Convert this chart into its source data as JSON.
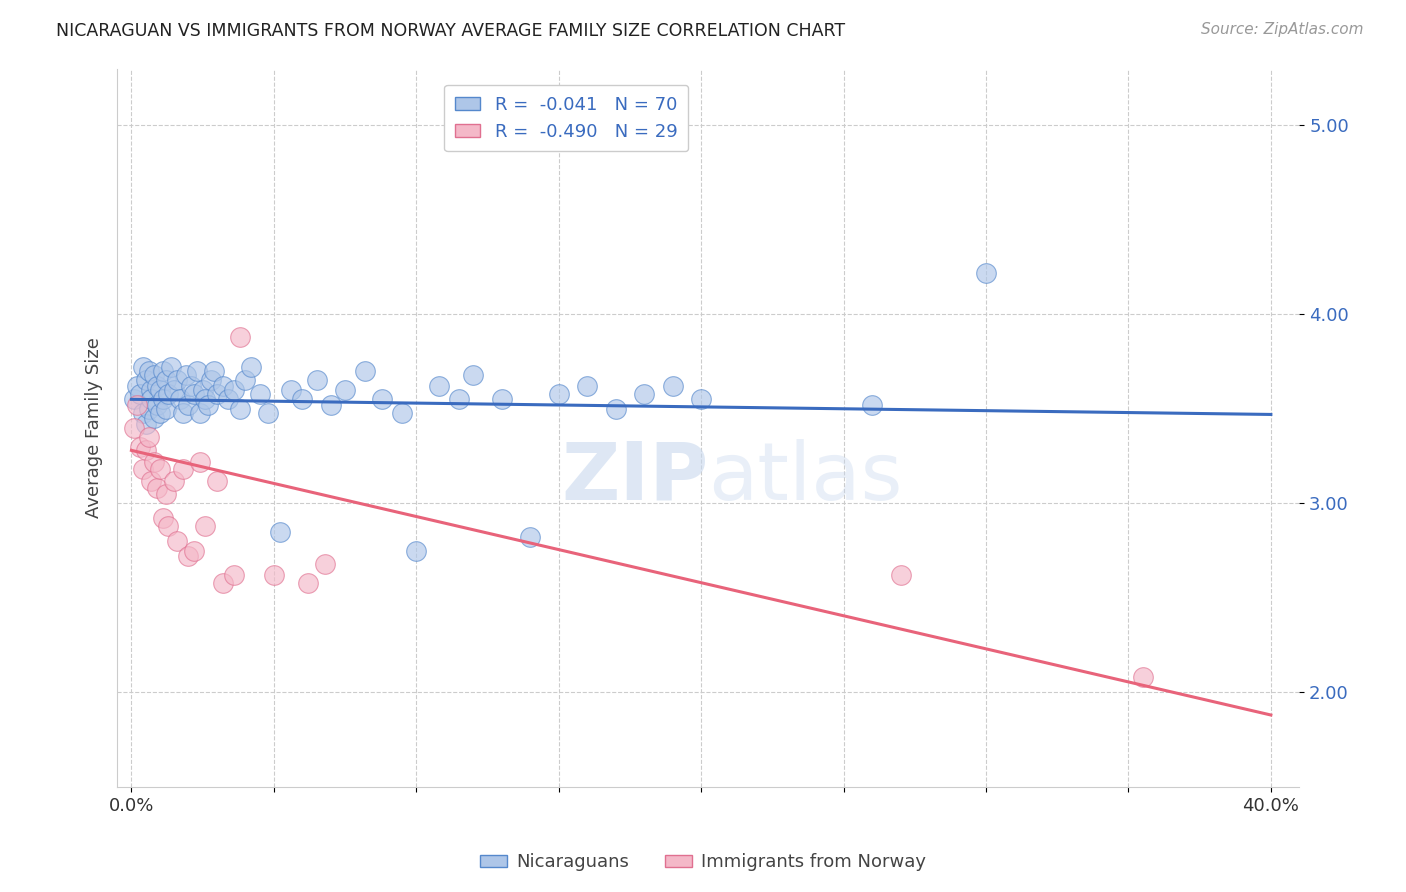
{
  "title": "NICARAGUAN VS IMMIGRANTS FROM NORWAY AVERAGE FAMILY SIZE CORRELATION CHART",
  "source": "Source: ZipAtlas.com",
  "ylabel": "Average Family Size",
  "ylim": [
    1.5,
    5.3
  ],
  "xlim": [
    -0.005,
    0.41
  ],
  "yticks": [
    2.0,
    3.0,
    4.0,
    5.0
  ],
  "xticks": [
    0.0,
    0.05,
    0.1,
    0.15,
    0.2,
    0.25,
    0.3,
    0.35,
    0.4
  ],
  "legend1_R": "-0.041",
  "legend1_N": "70",
  "legend2_R": "-0.490",
  "legend2_N": "29",
  "blue_fill": "#aec6e8",
  "blue_edge": "#5588cc",
  "pink_fill": "#f4b8c8",
  "pink_edge": "#e07090",
  "blue_line": "#3a6bbf",
  "pink_line": "#e8637a",
  "watermark_color": "#c8d8ee",
  "blue_scatter_x": [
    0.001,
    0.002,
    0.003,
    0.004,
    0.004,
    0.005,
    0.005,
    0.006,
    0.006,
    0.007,
    0.007,
    0.008,
    0.008,
    0.009,
    0.009,
    0.01,
    0.01,
    0.011,
    0.011,
    0.012,
    0.012,
    0.013,
    0.014,
    0.015,
    0.016,
    0.017,
    0.018,
    0.019,
    0.02,
    0.021,
    0.022,
    0.023,
    0.024,
    0.025,
    0.026,
    0.027,
    0.028,
    0.029,
    0.03,
    0.032,
    0.034,
    0.036,
    0.038,
    0.04,
    0.042,
    0.045,
    0.048,
    0.052,
    0.056,
    0.06,
    0.065,
    0.07,
    0.075,
    0.082,
    0.088,
    0.095,
    0.1,
    0.108,
    0.115,
    0.12,
    0.13,
    0.14,
    0.15,
    0.16,
    0.17,
    0.18,
    0.19,
    0.2,
    0.26,
    0.3
  ],
  "blue_scatter_y": [
    3.55,
    3.62,
    3.58,
    3.72,
    3.48,
    3.65,
    3.42,
    3.7,
    3.5,
    3.6,
    3.55,
    3.68,
    3.45,
    3.62,
    3.52,
    3.6,
    3.48,
    3.7,
    3.55,
    3.65,
    3.5,
    3.58,
    3.72,
    3.6,
    3.65,
    3.55,
    3.48,
    3.68,
    3.52,
    3.62,
    3.58,
    3.7,
    3.48,
    3.6,
    3.55,
    3.52,
    3.65,
    3.7,
    3.58,
    3.62,
    3.55,
    3.6,
    3.5,
    3.65,
    3.72,
    3.58,
    3.48,
    2.85,
    3.6,
    3.55,
    3.65,
    3.52,
    3.6,
    3.7,
    3.55,
    3.48,
    2.75,
    3.62,
    3.55,
    3.68,
    3.55,
    2.82,
    3.58,
    3.62,
    3.5,
    3.58,
    3.62,
    3.55,
    3.52,
    4.22
  ],
  "pink_scatter_x": [
    0.001,
    0.002,
    0.003,
    0.004,
    0.005,
    0.006,
    0.007,
    0.008,
    0.009,
    0.01,
    0.011,
    0.012,
    0.013,
    0.015,
    0.016,
    0.018,
    0.02,
    0.022,
    0.024,
    0.026,
    0.03,
    0.032,
    0.036,
    0.038,
    0.05,
    0.062,
    0.068,
    0.27,
    0.355
  ],
  "pink_scatter_y": [
    3.4,
    3.52,
    3.3,
    3.18,
    3.28,
    3.35,
    3.12,
    3.22,
    3.08,
    3.18,
    2.92,
    3.05,
    2.88,
    3.12,
    2.8,
    3.18,
    2.72,
    2.75,
    3.22,
    2.88,
    3.12,
    2.58,
    2.62,
    3.88,
    2.62,
    2.58,
    2.68,
    2.62,
    2.08
  ],
  "blue_trend_x": [
    0.0,
    0.4
  ],
  "blue_trend_y": [
    3.55,
    3.47
  ],
  "pink_trend_x": [
    0.0,
    0.4
  ],
  "pink_trend_y": [
    3.28,
    1.88
  ]
}
